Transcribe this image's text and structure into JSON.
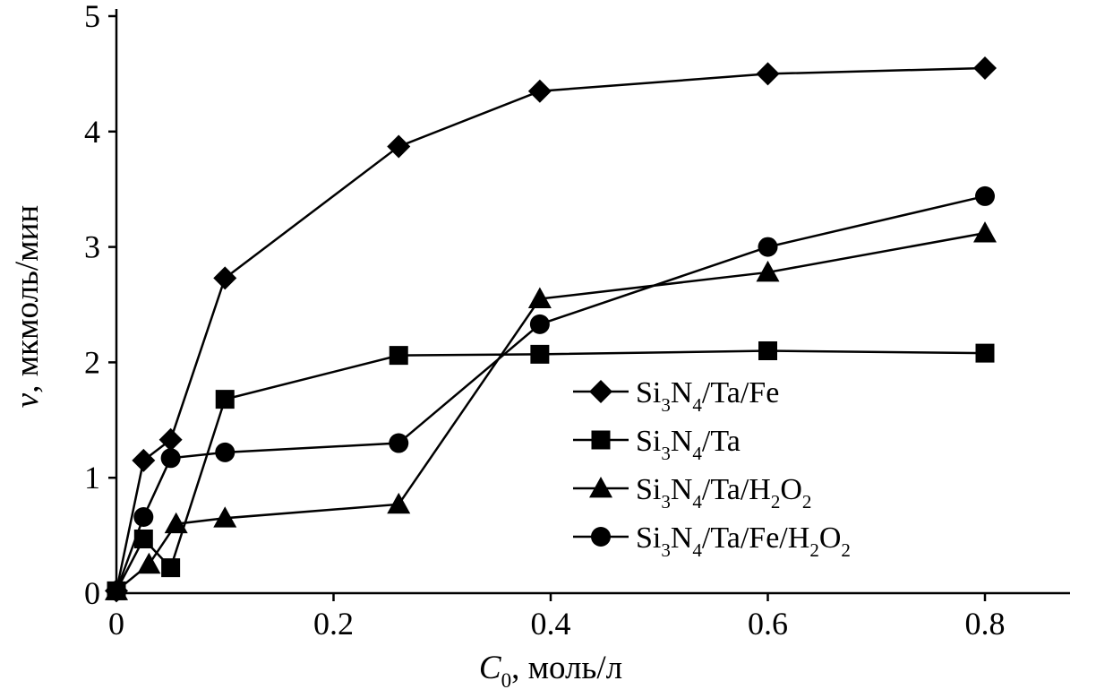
{
  "chart_data": {
    "type": "line",
    "title": "",
    "xlabel": "C0, моль/л",
    "ylabel": "v, мкмоль/мин",
    "xlabel_parts": [
      {
        "text": "C",
        "italic": true
      },
      {
        "text": "0",
        "sub": true
      },
      {
        "text": ", моль/л"
      }
    ],
    "ylabel_parts": [
      {
        "text": "v",
        "italic": true
      },
      {
        "text": ", мкмоль/мин"
      }
    ],
    "xlim": [
      0,
      0.85
    ],
    "ylim": [
      0,
      5
    ],
    "x_ticks": [
      0,
      0.2,
      0.4,
      0.6,
      0.8
    ],
    "x_tick_labels": [
      "0",
      "0.2",
      "0.4",
      "0.6",
      "0.8"
    ],
    "y_ticks": [
      0,
      1,
      2,
      3,
      4,
      5
    ],
    "y_tick_labels": [
      "0",
      "1",
      "2",
      "3",
      "4",
      "5"
    ],
    "grid": false,
    "legend_position": "center-right",
    "colors": {
      "line": "#000000",
      "marker_fill": "#000000",
      "background": "#ffffff"
    },
    "series": [
      {
        "id": "si3n4-ta-fe",
        "name": "Si₃N₄/Ta/Fe",
        "marker": "diamond",
        "name_parts": [
          {
            "text": "Si"
          },
          {
            "text": "3",
            "sub": true
          },
          {
            "text": "N"
          },
          {
            "text": "4",
            "sub": true
          },
          {
            "text": "/Ta/Fe"
          }
        ],
        "x": [
          0,
          0.025,
          0.05,
          0.1,
          0.26,
          0.39,
          0.6,
          0.8
        ],
        "y": [
          0.02,
          1.15,
          1.33,
          2.73,
          3.87,
          4.35,
          4.5,
          4.55
        ]
      },
      {
        "id": "si3n4-ta",
        "name": "Si₃N₄/Ta",
        "marker": "square",
        "name_parts": [
          {
            "text": "Si"
          },
          {
            "text": "3",
            "sub": true
          },
          {
            "text": "N"
          },
          {
            "text": "4",
            "sub": true
          },
          {
            "text": "/Ta"
          }
        ],
        "x": [
          0,
          0.025,
          0.05,
          0.1,
          0.26,
          0.39,
          0.6,
          0.8
        ],
        "y": [
          0.02,
          0.47,
          0.22,
          1.68,
          2.06,
          2.07,
          2.1,
          2.08
        ]
      },
      {
        "id": "si3n4-ta-h2o2",
        "name": "Si₃N₄/Ta/H₂O₂",
        "marker": "triangle",
        "name_parts": [
          {
            "text": "Si"
          },
          {
            "text": "3",
            "sub": true
          },
          {
            "text": "N"
          },
          {
            "text": "4",
            "sub": true
          },
          {
            "text": "/Ta/H"
          },
          {
            "text": "2",
            "sub": true
          },
          {
            "text": "O"
          },
          {
            "text": "2",
            "sub": true
          }
        ],
        "x": [
          0,
          0.03,
          0.055,
          0.1,
          0.26,
          0.39,
          0.6,
          0.8
        ],
        "y": [
          0.02,
          0.25,
          0.6,
          0.65,
          0.77,
          2.55,
          2.78,
          3.12
        ]
      },
      {
        "id": "si3n4-ta-fe-h2o2",
        "name": "Si₃N₄/Ta/Fe/H₂O₂",
        "marker": "circle",
        "name_parts": [
          {
            "text": "Si"
          },
          {
            "text": "3",
            "sub": true
          },
          {
            "text": "N"
          },
          {
            "text": "4",
            "sub": true
          },
          {
            "text": "/Ta/Fe/H"
          },
          {
            "text": "2",
            "sub": true
          },
          {
            "text": "O"
          },
          {
            "text": "2",
            "sub": true
          }
        ],
        "x": [
          0,
          0.025,
          0.05,
          0.1,
          0.26,
          0.39,
          0.6,
          0.8
        ],
        "y": [
          0.02,
          0.66,
          1.17,
          1.22,
          1.3,
          2.33,
          3.0,
          3.44
        ]
      }
    ]
  }
}
